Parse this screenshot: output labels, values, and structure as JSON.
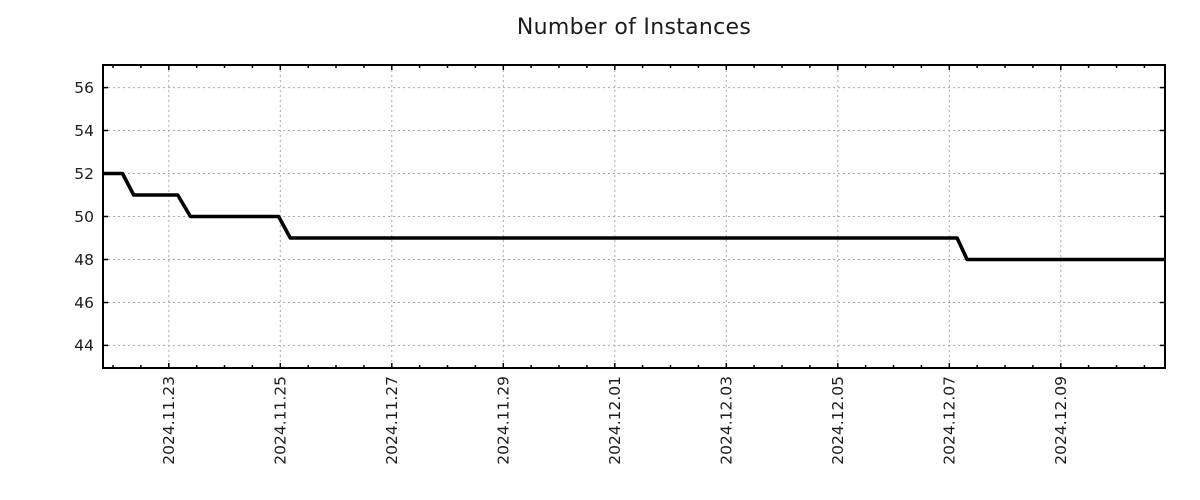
{
  "page": {
    "background": "#ffffff"
  },
  "chart_data": {
    "type": "line",
    "title": "Number of Instances",
    "subtitle": "",
    "legend": "none",
    "style": {
      "line_color": "#000000",
      "line_width": 3.6,
      "grid_color": "#a9a9a9",
      "grid_style": "dotted",
      "axis_color": "#000000",
      "text_color": "#1c1c1c",
      "background": "#ffffff"
    },
    "x_axis": {
      "unit": "days since 2024-11-23 00:00",
      "range": [
        -1.18,
        17.87
      ],
      "major_tick_interval": 2,
      "minor_tick_interval": 0.5,
      "label_rotation_deg": 90,
      "gridlines": true,
      "major_ticks": [
        {
          "offset": 0,
          "label": "2024.11.23"
        },
        {
          "offset": 2,
          "label": "2024.11.25"
        },
        {
          "offset": 4,
          "label": "2024.11.27"
        },
        {
          "offset": 6,
          "label": "2024.11.29"
        },
        {
          "offset": 8,
          "label": "2024.12.01"
        },
        {
          "offset": 10,
          "label": "2024.12.03"
        },
        {
          "offset": 12,
          "label": "2024.12.05"
        },
        {
          "offset": 14,
          "label": "2024.12.07"
        },
        {
          "offset": 16,
          "label": "2024.12.09"
        }
      ]
    },
    "y_axis": {
      "range": [
        42.95,
        57.05
      ],
      "ticks": [
        44,
        46,
        48,
        50,
        52,
        54,
        56
      ],
      "gridlines": true,
      "label": ""
    },
    "series": [
      {
        "name": "Number of Instances",
        "points": [
          [
            -1.18,
            52
          ],
          [
            -0.83,
            52
          ],
          [
            -0.63,
            51
          ],
          [
            0.16,
            51
          ],
          [
            0.39,
            50
          ],
          [
            1.97,
            50
          ],
          [
            2.18,
            49
          ],
          [
            14.14,
            49
          ],
          [
            14.32,
            48
          ],
          [
            17.87,
            48
          ]
        ]
      }
    ],
    "readings": {
      "start_value": 52,
      "end_value": 48,
      "transitions": [
        {
          "approx_date": "2024.11.22",
          "from": 52,
          "to": 51
        },
        {
          "approx_date": "2024.11.23",
          "from": 51,
          "to": 50
        },
        {
          "approx_date": "2024.11.25",
          "from": 50,
          "to": 49
        },
        {
          "approx_date": "2024.12.07",
          "from": 49,
          "to": 48
        }
      ]
    }
  }
}
